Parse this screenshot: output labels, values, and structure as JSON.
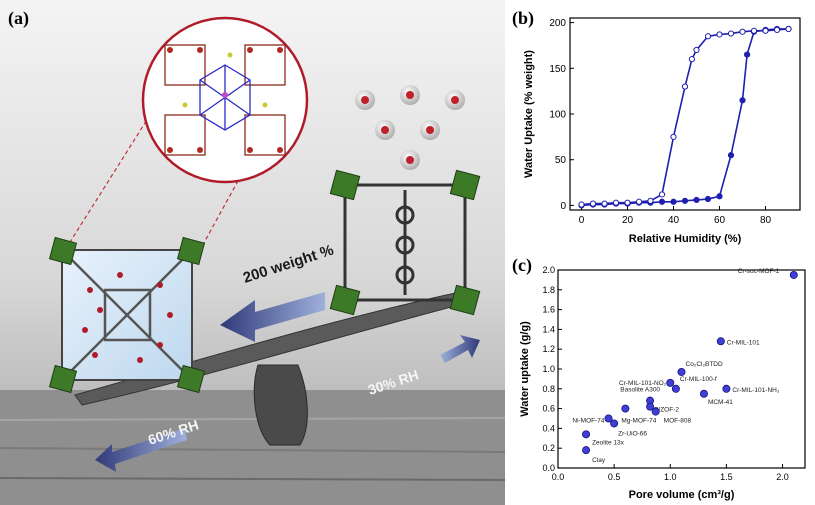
{
  "panel_a": {
    "label": "(a)",
    "arrow_text_weight": "200 weight %",
    "arrow_text_30rh": "30% RH",
    "arrow_text_60rh": "60% RH"
  },
  "panel_b": {
    "label": "(b)"
  },
  "panel_c": {
    "label": "(c)"
  },
  "colors": {
    "series_blue": "#1f1fb0",
    "point_fill": "#3f3fd8",
    "arrow_blue": "#4a5aa8",
    "metal_green": "#3d7a28"
  },
  "chart_data": [
    {
      "id": "b",
      "type": "line",
      "xlabel": "Relative Humidity (%)",
      "ylabel": "Water Uptake (% weight)",
      "xlim": [
        -5,
        95
      ],
      "ylim": [
        -5,
        205
      ],
      "xticks": [
        0,
        20,
        40,
        60,
        80
      ],
      "yticks": [
        0,
        50,
        100,
        150,
        200
      ],
      "grid": false,
      "series": [
        {
          "marker": "filled-circle",
          "x": [
            0,
            5,
            10,
            15,
            20,
            25,
            30,
            35,
            40,
            45,
            50,
            55,
            60,
            65,
            70,
            72,
            75,
            80,
            85,
            90
          ],
          "y": [
            0,
            1,
            1,
            2,
            2,
            3,
            3,
            4,
            4,
            5,
            6,
            7,
            10,
            55,
            115,
            165,
            190,
            192,
            193,
            193
          ]
        },
        {
          "marker": "open-circle",
          "x": [
            90,
            85,
            80,
            75,
            70,
            65,
            60,
            55,
            50,
            48,
            45,
            40,
            35,
            30,
            25,
            20,
            15,
            10,
            5,
            0
          ],
          "y": [
            193,
            192,
            191,
            191,
            190,
            188,
            187,
            185,
            170,
            160,
            130,
            75,
            12,
            5,
            4,
            3,
            3,
            2,
            2,
            1
          ]
        }
      ]
    },
    {
      "id": "c",
      "type": "scatter",
      "xlabel": "Pore volume (cm³/g)",
      "ylabel": "Water uptake (g/g)",
      "xlim": [
        0,
        2.2
      ],
      "ylim": [
        0,
        2.0
      ],
      "xticks": [
        0.0,
        0.5,
        1.0,
        1.5,
        2.0
      ],
      "xtick_labels": [
        "0.0",
        "0.5",
        "1.0",
        "1.5",
        "2.0"
      ],
      "yticks": [
        0.0,
        0.2,
        0.4,
        0.6,
        0.8,
        1.0,
        1.2,
        1.4,
        1.6,
        1.8,
        2.0
      ],
      "ytick_labels": [
        "0.0",
        "0.2",
        "0.4",
        "0.6",
        "0.8",
        "1.0",
        "1.2",
        "1.4",
        "1.6",
        "1.8",
        "2.0"
      ],
      "grid": false,
      "points": [
        {
          "label": "Cr-soc-MOF-1",
          "x": 2.1,
          "y": 1.95,
          "anchor": "start",
          "dx": -56,
          "dy": -2
        },
        {
          "label": "Cr-MIL-101",
          "x": 1.45,
          "y": 1.28,
          "anchor": "start",
          "dx": 6,
          "dy": 3
        },
        {
          "label": "Co₂Cl₂BTDD",
          "x": 1.1,
          "y": 0.97,
          "anchor": "start",
          "dx": 4,
          "dy": -6
        },
        {
          "label": "Cr-MIL-101-NO₂",
          "x": 1.0,
          "y": 0.86,
          "anchor": "end",
          "dx": -4,
          "dy": 2
        },
        {
          "label": "Cr-MIL-100-f",
          "x": 1.05,
          "y": 0.8,
          "anchor": "start",
          "dx": 4,
          "dy": -8
        },
        {
          "label": "Cr-MIL-101-NH₂",
          "x": 1.5,
          "y": 0.8,
          "anchor": "start",
          "dx": 6,
          "dy": 3
        },
        {
          "label": "Basolite A300",
          "x": 0.82,
          "y": 0.68,
          "anchor": "end",
          "dx": 10,
          "dy": -9
        },
        {
          "label": "MCM-41",
          "x": 1.3,
          "y": 0.75,
          "anchor": "start",
          "dx": 4,
          "dy": 10
        },
        {
          "label": "PIZOF-2",
          "x": 0.82,
          "y": 0.62,
          "anchor": "start",
          "dx": 4,
          "dy": 5
        },
        {
          "label": "MOF-808",
          "x": 0.87,
          "y": 0.57,
          "anchor": "start",
          "dx": 8,
          "dy": 11
        },
        {
          "label": "Mg-MOF-74",
          "x": 0.6,
          "y": 0.6,
          "anchor": "start",
          "dx": -4,
          "dy": 14
        },
        {
          "label": "Ni-MOF-74",
          "x": 0.45,
          "y": 0.5,
          "anchor": "end",
          "dx": -4,
          "dy": 4
        },
        {
          "label": "Zr-UiO-66",
          "x": 0.5,
          "y": 0.45,
          "anchor": "start",
          "dx": 4,
          "dy": 12
        },
        {
          "label": "Zeolite 13x",
          "x": 0.25,
          "y": 0.34,
          "anchor": "start",
          "dx": 6,
          "dy": 10
        },
        {
          "label": "Clay",
          "x": 0.25,
          "y": 0.18,
          "anchor": "start",
          "dx": 6,
          "dy": 12
        }
      ]
    }
  ]
}
